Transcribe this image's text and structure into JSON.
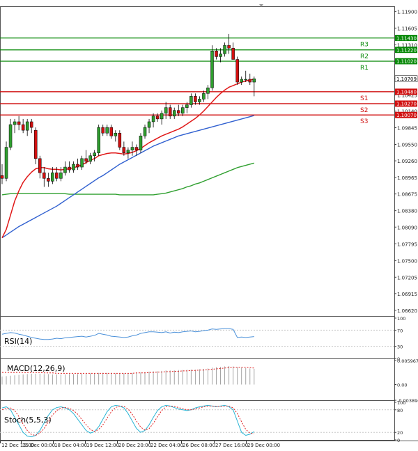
{
  "chart_data": {
    "type": "candlestick",
    "instrument_note": "Price chart with indicator panels",
    "colors": {
      "bull": "#2e9e2e",
      "bear": "#d01010",
      "ma_red": "#e01818",
      "ma_blue": "#3060d0",
      "ma_green": "#30a030",
      "resistance": "#0a8a0a",
      "support": "#d01010",
      "rsi": "#4a90d9",
      "macd_hist": "#9a9a9a",
      "macd_signal": "#e02020",
      "stoch_main": "#28b4d4",
      "stoch_signal": "#e02020",
      "grid": "#c8c8c8",
      "frame": "#000000"
    },
    "price_axis": {
      "ylim": [
        1.0652,
        1.1199
      ],
      "ticks": [
        "1.11900",
        "1.11605",
        "1.11310",
        "1.11015",
        "1.10720",
        "1.10425",
        "1.10140",
        "1.09845",
        "1.09550",
        "1.09260",
        "1.08965",
        "1.08675",
        "1.08380",
        "1.08090",
        "1.07795",
        "1.07500",
        "1.07205",
        "1.06915",
        "1.06620"
      ]
    },
    "levels": [
      {
        "name": "R3",
        "value": 1.1143,
        "label": "1.11430",
        "kind": "resistance"
      },
      {
        "name": "R2",
        "value": 1.1122,
        "label": "1.11220",
        "kind": "resistance"
      },
      {
        "name": "R1",
        "value": 1.1102,
        "label": "1.11020",
        "kind": "resistance"
      },
      {
        "name": "S1",
        "value": 1.1048,
        "label": "1.10480",
        "kind": "support"
      },
      {
        "name": "S2",
        "value": 1.1027,
        "label": "1.10270",
        "kind": "support"
      },
      {
        "name": "S3",
        "value": 1.1007,
        "label": "1.10070",
        "kind": "support"
      }
    ],
    "current_price": {
      "value": 1.10709,
      "label": "1.10709"
    },
    "candles": [
      [
        1.09,
        1.092,
        1.0885,
        1.0895
      ],
      [
        1.0895,
        1.096,
        1.089,
        1.095
      ],
      [
        1.095,
        1.1,
        1.0945,
        1.099
      ],
      [
        1.099,
        1.1,
        1.0975,
        1.0995
      ],
      [
        1.0995,
        1.1005,
        1.098,
        1.099
      ],
      [
        1.099,
        1.1,
        1.0975,
        1.098
      ],
      [
        1.098,
        1.1,
        1.097,
        1.0995
      ],
      [
        1.0995,
        1.1,
        1.0975,
        1.0985
      ],
      [
        1.098,
        1.0985,
        1.092,
        1.093
      ],
      [
        1.093,
        1.0935,
        1.0895,
        1.0905
      ],
      [
        1.0905,
        1.0915,
        1.088,
        1.0895
      ],
      [
        1.0895,
        1.0905,
        1.088,
        1.089
      ],
      [
        1.089,
        1.0915,
        1.0885,
        1.0905
      ],
      [
        1.0905,
        1.0915,
        1.089,
        1.0895
      ],
      [
        1.0895,
        1.0915,
        1.089,
        1.0905
      ],
      [
        1.0905,
        1.0925,
        1.09,
        1.0915
      ],
      [
        1.0915,
        1.0925,
        1.0905,
        1.091
      ],
      [
        1.091,
        1.0925,
        1.0905,
        1.092
      ],
      [
        1.092,
        1.093,
        1.091,
        1.0915
      ],
      [
        1.0915,
        1.0935,
        1.091,
        1.093
      ],
      [
        1.093,
        1.0945,
        1.092,
        1.0925
      ],
      [
        1.0925,
        1.094,
        1.092,
        1.0935
      ],
      [
        1.0935,
        1.0945,
        1.0925,
        1.094
      ],
      [
        1.094,
        1.099,
        1.0935,
        1.0985
      ],
      [
        1.0985,
        1.099,
        1.097,
        1.0975
      ],
      [
        1.0975,
        1.099,
        1.097,
        1.0985
      ],
      [
        1.0985,
        1.099,
        1.0965,
        1.097
      ],
      [
        1.097,
        1.098,
        1.096,
        1.0975
      ],
      [
        1.0975,
        1.098,
        1.0945,
        1.095
      ],
      [
        1.095,
        1.096,
        1.0935,
        1.094
      ],
      [
        1.094,
        1.095,
        1.093,
        1.0945
      ],
      [
        1.0945,
        1.096,
        1.0935,
        1.095
      ],
      [
        1.095,
        1.0955,
        1.0935,
        1.0945
      ],
      [
        1.0945,
        1.0975,
        1.094,
        1.097
      ],
      [
        1.097,
        1.099,
        1.0965,
        1.0985
      ],
      [
        1.0985,
        1.1,
        1.0975,
        1.0995
      ],
      [
        1.0995,
        1.101,
        1.0985,
        1.1005
      ],
      [
        1.1005,
        1.101,
        1.0995,
        1.1
      ],
      [
        1.1,
        1.1015,
        1.099,
        1.101
      ],
      [
        1.101,
        1.103,
        1.1,
        1.102
      ],
      [
        1.102,
        1.1025,
        1.1,
        1.1005
      ],
      [
        1.1005,
        1.102,
        1.1,
        1.1015
      ],
      [
        1.1015,
        1.1025,
        1.1005,
        1.101
      ],
      [
        1.101,
        1.1025,
        1.1005,
        1.102
      ],
      [
        1.102,
        1.103,
        1.101,
        1.1025
      ],
      [
        1.1025,
        1.1045,
        1.102,
        1.104
      ],
      [
        1.104,
        1.1045,
        1.1025,
        1.103
      ],
      [
        1.103,
        1.104,
        1.1025,
        1.1035
      ],
      [
        1.1035,
        1.105,
        1.103,
        1.1045
      ],
      [
        1.1045,
        1.106,
        1.1035,
        1.1055
      ],
      [
        1.1055,
        1.113,
        1.105,
        1.112
      ],
      [
        1.112,
        1.1125,
        1.1105,
        1.111
      ],
      [
        1.111,
        1.1125,
        1.11,
        1.1115
      ],
      [
        1.1115,
        1.1135,
        1.111,
        1.113
      ],
      [
        1.113,
        1.115,
        1.1115,
        1.1125
      ],
      [
        1.1125,
        1.1135,
        1.1105,
        1.1105
      ],
      [
        1.1105,
        1.111,
        1.106,
        1.1065
      ],
      [
        1.1065,
        1.1075,
        1.106,
        1.107
      ],
      [
        1.107,
        1.1085,
        1.1065,
        1.107
      ],
      [
        1.107,
        1.108,
        1.106,
        1.1065
      ],
      [
        1.1065,
        1.1075,
        1.104,
        1.1071
      ]
    ],
    "ma_red": [
      1.079,
      1.0805,
      1.083,
      1.0855,
      1.0873,
      1.0888,
      1.0898,
      1.0906,
      1.0912,
      1.0914,
      1.0914,
      1.0912,
      1.0911,
      1.0911,
      1.091,
      1.0911,
      1.0912,
      1.0914,
      1.0916,
      1.0919,
      1.0923,
      1.0927,
      1.093,
      1.0935,
      1.0937,
      1.0939,
      1.094,
      1.094,
      1.0939,
      1.0938,
      1.0939,
      1.0941,
      1.0944,
      1.0948,
      1.0953,
      1.0958,
      1.0962,
      1.0966,
      1.097,
      1.0973,
      1.0976,
      1.0979,
      1.0982,
      1.0986,
      1.0991,
      1.0996,
      1.1001,
      1.1007,
      1.1014,
      1.1022,
      1.103,
      1.1038,
      1.1045,
      1.1051,
      1.1056,
      1.1059,
      1.1062,
      1.1065,
      1.1067,
      1.1069,
      1.107
    ],
    "ma_blue": [
      1.079,
      1.0795,
      1.08,
      1.0805,
      1.081,
      1.0814,
      1.0818,
      1.0822,
      1.0826,
      1.083,
      1.0834,
      1.0838,
      1.0842,
      1.0846,
      1.0851,
      1.0856,
      1.0861,
      1.0866,
      1.0871,
      1.0876,
      1.0881,
      1.0886,
      1.0891,
      1.0896,
      1.09,
      1.0905,
      1.091,
      1.0915,
      1.092,
      1.0924,
      1.0928,
      1.0932,
      1.0936,
      1.094,
      1.0944,
      1.0948,
      1.0952,
      1.0955,
      1.0958,
      1.0961,
      1.0964,
      1.0967,
      1.097,
      1.0972,
      1.0974,
      1.0976,
      1.0978,
      1.098,
      1.0982,
      1.0984,
      1.0986,
      1.0988,
      1.099,
      1.0992,
      1.0994,
      1.0996,
      1.0998,
      1.1,
      1.1002,
      1.1004,
      1.1006
    ],
    "ma_green": [
      1.0866,
      1.0867,
      1.0868,
      1.0868,
      1.0868,
      1.0868,
      1.0868,
      1.0868,
      1.0868,
      1.0868,
      1.0868,
      1.0868,
      1.0868,
      1.0868,
      1.0868,
      1.0868,
      1.0867,
      1.0867,
      1.0867,
      1.0867,
      1.0867,
      1.0867,
      1.0867,
      1.0867,
      1.0867,
      1.0867,
      1.0867,
      1.0867,
      1.0866,
      1.0866,
      1.0866,
      1.0866,
      1.0866,
      1.0866,
      1.0866,
      1.0866,
      1.0866,
      1.0867,
      1.0868,
      1.0869,
      1.0871,
      1.0873,
      1.0875,
      1.0877,
      1.088,
      1.0882,
      1.0885,
      1.0887,
      1.089,
      1.0893,
      1.0896,
      1.0899,
      1.0902,
      1.0905,
      1.0908,
      1.0911,
      1.0914,
      1.0916,
      1.0918,
      1.092,
      1.0922
    ],
    "rsi": {
      "label": "RSI(14)",
      "ylim": [
        0,
        100
      ],
      "ticks": [
        "100",
        "70",
        "30",
        "0"
      ],
      "values": [
        60,
        62,
        64,
        63,
        60,
        58,
        55,
        52,
        50,
        48,
        47,
        47,
        48,
        50,
        49,
        51,
        52,
        53,
        54,
        55,
        53,
        55,
        57,
        62,
        60,
        58,
        55,
        54,
        53,
        52,
        53,
        56,
        58,
        62,
        64,
        66,
        66,
        65,
        64,
        66,
        63,
        65,
        64,
        66,
        67,
        68,
        66,
        67,
        69,
        70,
        73,
        72,
        73,
        74,
        74,
        72,
        52,
        53,
        52,
        53,
        54
      ]
    },
    "macd": {
      "label": "MACD(12,26,9)",
      "ylim": [
        -0.00389,
        0.00597
      ],
      "ticks": [
        "0.005967",
        "0.00",
        "-0.003896"
      ],
      "histogram": [
        0.002,
        0.0021,
        0.0022,
        0.0023,
        0.0024,
        0.0025,
        0.0026,
        0.0027,
        0.0027,
        0.0027,
        0.0026,
        0.0026,
        0.0025,
        0.0025,
        0.0025,
        0.0025,
        0.0026,
        0.0026,
        0.0026,
        0.0027,
        0.0027,
        0.0028,
        0.0028,
        0.0029,
        0.0029,
        0.0029,
        0.0029,
        0.0028,
        0.0028,
        0.0028,
        0.0028,
        0.0029,
        0.0029,
        0.003,
        0.0031,
        0.0032,
        0.0033,
        0.0033,
        0.0034,
        0.0035,
        0.0035,
        0.0035,
        0.0036,
        0.0036,
        0.0037,
        0.0037,
        0.0037,
        0.0038,
        0.0039,
        0.004,
        0.0042,
        0.0043,
        0.0044,
        0.0045,
        0.0046,
        0.0045,
        0.0043,
        0.0042,
        0.0041,
        0.004,
        0.0039
      ],
      "signal": [
        0.003,
        0.003,
        0.003,
        0.003,
        0.003,
        0.003,
        0.003,
        0.003,
        0.003,
        0.003,
        0.0029,
        0.0029,
        0.0029,
        0.0028,
        0.0028,
        0.0028,
        0.0028,
        0.0028,
        0.0028,
        0.0028,
        0.0028,
        0.0028,
        0.0028,
        0.0028,
        0.0028,
        0.0028,
        0.0028,
        0.0028,
        0.0028,
        0.0028,
        0.0028,
        0.0028,
        0.0029,
        0.0029,
        0.0029,
        0.003,
        0.003,
        0.0031,
        0.0031,
        0.0032,
        0.0032,
        0.0033,
        0.0033,
        0.0034,
        0.0034,
        0.0035,
        0.0035,
        0.0036,
        0.0036,
        0.0037,
        0.0038,
        0.0039,
        0.004,
        0.0041,
        0.0042,
        0.0043,
        0.0043,
        0.0043,
        0.0043,
        0.0042,
        0.0041
      ]
    },
    "stoch": {
      "label": "Stoch(5,5,3)",
      "ylim": [
        0,
        100
      ],
      "ticks": [
        "100",
        "80",
        "20",
        "0"
      ],
      "main": [
        85,
        88,
        80,
        60,
        40,
        20,
        10,
        8,
        12,
        25,
        45,
        65,
        80,
        86,
        88,
        85,
        80,
        70,
        55,
        40,
        25,
        18,
        22,
        35,
        55,
        75,
        88,
        92,
        90,
        85,
        70,
        50,
        30,
        20,
        25,
        40,
        60,
        78,
        88,
        92,
        90,
        86,
        82,
        80,
        78,
        80,
        85,
        88,
        90,
        92,
        90,
        88,
        90,
        92,
        88,
        80,
        50,
        20,
        12,
        15,
        22
      ],
      "signal": [
        80,
        84,
        85,
        78,
        62,
        42,
        25,
        14,
        12,
        18,
        30,
        48,
        66,
        78,
        85,
        86,
        84,
        78,
        68,
        54,
        40,
        28,
        22,
        28,
        40,
        58,
        75,
        86,
        90,
        89,
        82,
        68,
        50,
        34,
        26,
        30,
        44,
        62,
        78,
        88,
        90,
        89,
        86,
        83,
        80,
        80,
        82,
        85,
        88,
        90,
        90,
        89,
        89,
        90,
        90,
        85,
        70,
        48,
        28,
        18,
        16
      ]
    },
    "x_axis": {
      "labels": [
        "12 Dec 16:00",
        "15 Dec 00:00",
        "18 Dec 04:00",
        "19 Dec 12:00",
        "20 Dec 20:00",
        "22 Dec 04:00",
        "26 Dec 08:00",
        "27 Dec 16:00",
        "29 Dec 00:00"
      ],
      "label_candle_index": [
        -1,
        7,
        17,
        26,
        35,
        44,
        53,
        61,
        68
      ]
    }
  }
}
